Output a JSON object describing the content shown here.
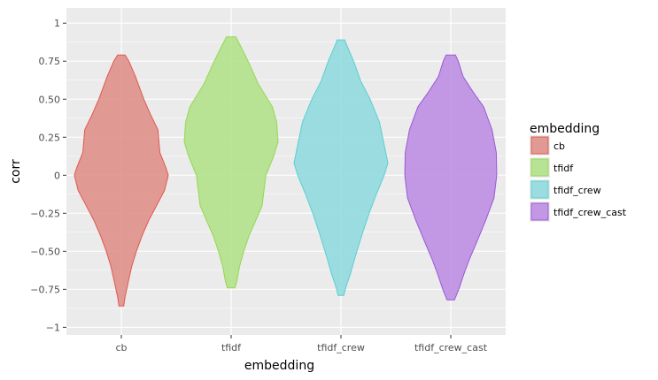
{
  "chart_data": {
    "type": "violin",
    "xlabel": "embedding",
    "ylabel": "corr",
    "categories": [
      "cb",
      "tfidf",
      "tfidf_crew",
      "tfidf_crew_cast"
    ],
    "y_ticks": [
      1,
      0.75,
      0.5,
      0.25,
      0,
      -0.25,
      -0.5,
      -0.75,
      -1
    ],
    "y_tick_labels": [
      "1",
      "0.75",
      "0.50",
      "0.25",
      "0",
      "−0.25",
      "−0.50",
      "−0.75",
      "−1"
    ],
    "ylim": [
      -1.05,
      1.1
    ],
    "grid": true,
    "legend": {
      "title": "embedding",
      "position": "right",
      "entries": [
        "cb",
        "tfidf",
        "tfidf_crew",
        "tfidf_crew_cast"
      ]
    },
    "series": [
      {
        "category": "cb",
        "fill": "#e0918a",
        "stroke": "#e0584e",
        "profile": [
          [
            0.79,
            0.08
          ],
          [
            0.75,
            0.16
          ],
          [
            0.65,
            0.3
          ],
          [
            0.5,
            0.48
          ],
          [
            0.4,
            0.62
          ],
          [
            0.3,
            0.78
          ],
          [
            0.15,
            0.82
          ],
          [
            0.05,
            0.95
          ],
          [
            0,
            1.0
          ],
          [
            -0.1,
            0.92
          ],
          [
            -0.2,
            0.75
          ],
          [
            -0.3,
            0.58
          ],
          [
            -0.4,
            0.44
          ],
          [
            -0.5,
            0.32
          ],
          [
            -0.6,
            0.22
          ],
          [
            -0.7,
            0.15
          ],
          [
            -0.8,
            0.08
          ],
          [
            -0.86,
            0.05
          ]
        ]
      },
      {
        "category": "tfidf",
        "fill": "#b3e18b",
        "stroke": "#95d853",
        "profile": [
          [
            0.91,
            0.1
          ],
          [
            0.85,
            0.2
          ],
          [
            0.75,
            0.36
          ],
          [
            0.6,
            0.58
          ],
          [
            0.45,
            0.88
          ],
          [
            0.35,
            0.97
          ],
          [
            0.22,
            1.0
          ],
          [
            0.12,
            0.9
          ],
          [
            0,
            0.74
          ],
          [
            -0.2,
            0.66
          ],
          [
            -0.3,
            0.52
          ],
          [
            -0.4,
            0.38
          ],
          [
            -0.5,
            0.27
          ],
          [
            -0.6,
            0.18
          ],
          [
            -0.7,
            0.12
          ],
          [
            -0.74,
            0.08
          ]
        ]
      },
      {
        "category": "tfidf_crew",
        "fill": "#92dadf",
        "stroke": "#59cfd3",
        "profile": [
          [
            0.89,
            0.08
          ],
          [
            0.85,
            0.13
          ],
          [
            0.75,
            0.27
          ],
          [
            0.62,
            0.42
          ],
          [
            0.5,
            0.62
          ],
          [
            0.35,
            0.82
          ],
          [
            0.2,
            0.92
          ],
          [
            0.08,
            1.0
          ],
          [
            0,
            0.92
          ],
          [
            -0.12,
            0.76
          ],
          [
            -0.25,
            0.6
          ],
          [
            -0.4,
            0.44
          ],
          [
            -0.55,
            0.29
          ],
          [
            -0.65,
            0.2
          ],
          [
            -0.72,
            0.12
          ],
          [
            -0.79,
            0.06
          ]
        ]
      },
      {
        "category": "tfidf_crew_cast",
        "fill": "#be8fe3",
        "stroke": "#9a59d6",
        "profile": [
          [
            0.79,
            0.1
          ],
          [
            0.75,
            0.16
          ],
          [
            0.65,
            0.26
          ],
          [
            0.55,
            0.47
          ],
          [
            0.45,
            0.7
          ],
          [
            0.3,
            0.88
          ],
          [
            0.15,
            0.97
          ],
          [
            0,
            0.98
          ],
          [
            -0.15,
            0.92
          ],
          [
            -0.3,
            0.74
          ],
          [
            -0.45,
            0.54
          ],
          [
            -0.55,
            0.4
          ],
          [
            -0.65,
            0.28
          ],
          [
            -0.75,
            0.17
          ],
          [
            -0.82,
            0.08
          ]
        ]
      }
    ]
  }
}
